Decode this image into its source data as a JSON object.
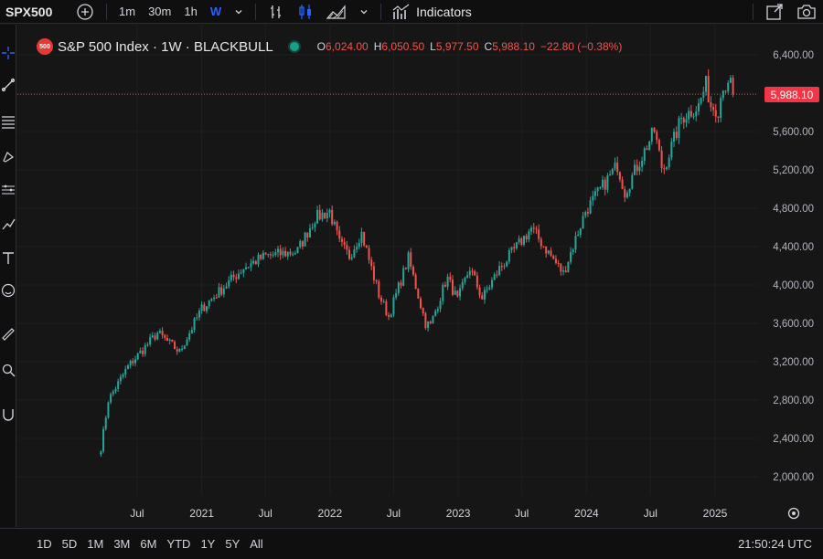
{
  "toolbar": {
    "symbol": "SPX500",
    "intervals": [
      "1m",
      "30m",
      "1h",
      "W"
    ],
    "active_interval": "W",
    "indicators_label": "Indicators"
  },
  "legend": {
    "badge": "500",
    "title": "S&P 500 Index · 1W · BLACKBULL",
    "o_key": "O",
    "o_val": "6,024.00",
    "h_key": "H",
    "h_val": "6,050.50",
    "l_key": "L",
    "l_val": "5,977.50",
    "c_key": "C",
    "c_val": "5,988.10",
    "change": "−22.80 (−0.38%)"
  },
  "price_tag": "5,988.10",
  "colors": {
    "up": "#26a69a",
    "down": "#ef5350",
    "accent": "#2962ff",
    "price_line": "#f23645"
  },
  "chart_data": {
    "type": "candlestick",
    "title": "S&P 500 Index · 1W · BLACKBULL",
    "y_axis_labels": [
      "6,400.00",
      "6,000.00",
      "5,600.00",
      "5,200.00",
      "4,800.00",
      "4,400.00",
      "4,000.00",
      "3,600.00",
      "3,200.00",
      "2,800.00",
      "2,400.00",
      "2,000.00"
    ],
    "x_axis_labels": [
      "Jul",
      "2021",
      "Jul",
      "2022",
      "Jul",
      "2023",
      "Jul",
      "2024",
      "Jul",
      "2025"
    ],
    "ylim": [
      1800,
      6500
    ],
    "last_close": 5988.1,
    "anchors": [
      [
        "2020-03-20",
        2300
      ],
      [
        "2020-04-10",
        2800
      ],
      [
        "2020-06-05",
        3150
      ],
      [
        "2020-08-28",
        3500
      ],
      [
        "2020-10-30",
        3300
      ],
      [
        "2020-12-31",
        3750
      ],
      [
        "2021-04-30",
        4180
      ],
      [
        "2021-06-30",
        4300
      ],
      [
        "2021-09-30",
        4350
      ],
      [
        "2021-11-19",
        4700
      ],
      [
        "2021-12-31",
        4770
      ],
      [
        "2022-01-28",
        4430
      ],
      [
        "2022-02-25",
        4300
      ],
      [
        "2022-03-31",
        4550
      ],
      [
        "2022-05-20",
        3900
      ],
      [
        "2022-06-17",
        3670
      ],
      [
        "2022-08-12",
        4280
      ],
      [
        "2022-09-30",
        3600
      ],
      [
        "2022-10-14",
        3580
      ],
      [
        "2022-11-30",
        4080
      ],
      [
        "2022-12-30",
        3840
      ],
      [
        "2023-02-03",
        4180
      ],
      [
        "2023-03-10",
        3860
      ],
      [
        "2023-04-28",
        4170
      ],
      [
        "2023-07-28",
        4590
      ],
      [
        "2023-10-27",
        4120
      ],
      [
        "2023-12-29",
        4770
      ],
      [
        "2024-03-29",
        5250
      ],
      [
        "2024-04-19",
        4970
      ],
      [
        "2024-07-12",
        5610
      ],
      [
        "2024-08-05",
        5180
      ],
      [
        "2024-09-27",
        5740
      ],
      [
        "2024-11-15",
        5870
      ],
      [
        "2024-12-06",
        6090
      ],
      [
        "2024-12-20",
        5870
      ],
      [
        "2025-01-10",
        5830
      ],
      [
        "2025-01-24",
        6100
      ],
      [
        "2025-02-07",
        6030
      ],
      [
        "2025-02-14",
        6110
      ],
      [
        "2025-02-21",
        5988.1
      ]
    ]
  },
  "ranges": [
    "1D",
    "5D",
    "1M",
    "3M",
    "6M",
    "YTD",
    "1Y",
    "5Y",
    "All"
  ],
  "clock": "21:50:24 UTC"
}
